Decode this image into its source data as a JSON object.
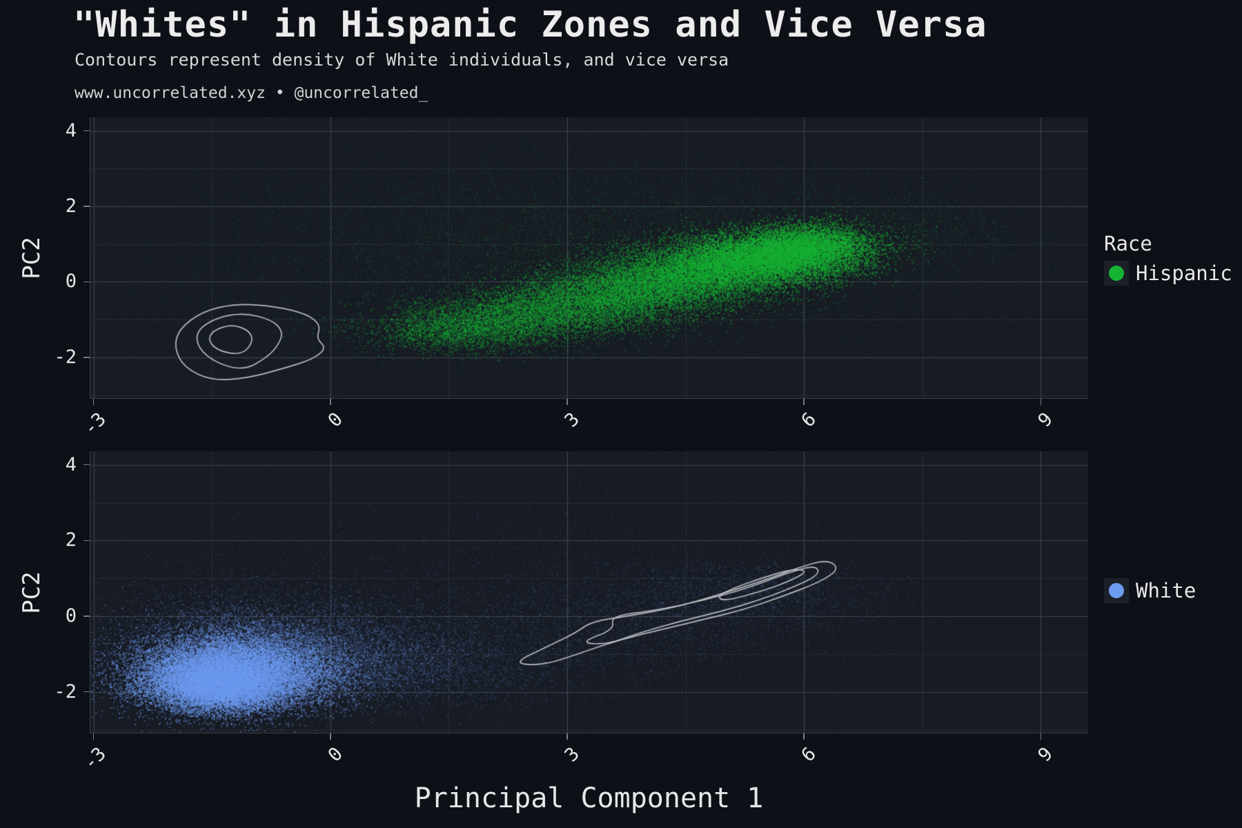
{
  "title": "\"Whites\" in Hispanic Zones and Vice Versa",
  "subtitle": "Contours represent density of White individuals, and vice versa",
  "caption": "www.uncorrelated.xyz • @uncorrelated_",
  "theme": {
    "background": "#0d1016",
    "panel_background": "#171b24",
    "grid_major": "#3e434d",
    "grid_minor": "#262b34",
    "axis_line": "#3a3f48",
    "tick_color": "#767b85",
    "text_color": "#e6e7e9",
    "contour_color": "#c9ccd1",
    "legend_key_background": "#1b2028"
  },
  "legend": {
    "title": "Race",
    "entries": [
      {
        "label": "Hispanic",
        "color": "#17b434"
      },
      {
        "label": "White",
        "color": "#6e9bf2"
      }
    ]
  },
  "axes": {
    "x_title": "Principal Component 1",
    "y_title": "PC2",
    "x_ticks": [
      -3,
      0,
      3,
      6,
      9
    ],
    "y_ticks": [
      -2,
      0,
      2,
      4
    ],
    "x_range": [
      -3.05,
      9.6
    ],
    "y_range": [
      -3.1,
      4.36
    ],
    "grid": true
  },
  "chart_data": [
    {
      "type": "scatter",
      "panel": "top",
      "series": "Hispanic",
      "points_color": "#17b434",
      "description": "Dense green point cloud rising diagonally from (1.5,-1.3) to bright core near (5.5,0.7)-(6.4,1.1); sparse halo across panel. Gray contours show White density centered near (-1.2,-1.6).",
      "clusters": [
        {
          "n": 9000,
          "m": [
            5.45,
            0.62
          ],
          "s": [
            0.6,
            0.34
          ],
          "a": 0.5
        },
        {
          "n": 5000,
          "m": [
            6.1,
            0.95
          ],
          "s": [
            0.42,
            0.3
          ],
          "a": 0.5
        },
        {
          "n": 7000,
          "m": [
            4.55,
            0.18
          ],
          "s": [
            0.65,
            0.36
          ],
          "a": 0.4
        },
        {
          "n": 6000,
          "m": [
            3.6,
            -0.35
          ],
          "s": [
            0.7,
            0.34
          ],
          "a": 0.38
        },
        {
          "n": 4500,
          "m": [
            2.55,
            -0.9
          ],
          "s": [
            0.75,
            0.32
          ],
          "a": 0.35
        },
        {
          "n": 3000,
          "m": [
            1.65,
            -1.28
          ],
          "s": [
            0.6,
            0.3
          ],
          "a": 0.32
        },
        {
          "n": 5000,
          "m": [
            3.9,
            0.5
          ],
          "s": [
            1.9,
            0.95
          ],
          "a": 0.14
        },
        {
          "n": 2400,
          "m": [
            3.0,
            2.0
          ],
          "s": [
            2.6,
            0.9
          ],
          "a": 0.12
        },
        {
          "n": 1000,
          "m": [
            -0.6,
            0.2
          ],
          "s": [
            1.5,
            1.4
          ],
          "a": 0.12
        },
        {
          "n": 900,
          "m": [
            7.2,
            1.35
          ],
          "s": [
            0.9,
            0.6
          ],
          "a": 0.16
        },
        {
          "n": 800,
          "m": [
            4.5,
            1.6
          ],
          "s": [
            3.4,
            1.5
          ],
          "a": 0.1
        }
      ],
      "contours": [
        [
          [
            -1.92,
            -1.25
          ],
          [
            -1.62,
            -0.78
          ],
          [
            -1.2,
            -0.58
          ],
          [
            -0.72,
            -0.64
          ],
          [
            -0.3,
            -0.85
          ],
          [
            -0.12,
            -1.15
          ],
          [
            -0.18,
            -1.5
          ],
          [
            -0.05,
            -1.75
          ],
          [
            -0.22,
            -2.05
          ],
          [
            -0.6,
            -2.3
          ],
          [
            -1.05,
            -2.55
          ],
          [
            -1.5,
            -2.62
          ],
          [
            -1.85,
            -2.28
          ],
          [
            -1.98,
            -1.75
          ]
        ],
        [
          [
            -1.7,
            -1.3
          ],
          [
            -1.45,
            -0.95
          ],
          [
            -1.1,
            -0.82
          ],
          [
            -0.75,
            -1.0
          ],
          [
            -0.6,
            -1.3
          ],
          [
            -0.65,
            -1.65
          ],
          [
            -0.8,
            -2.0
          ],
          [
            -1.1,
            -2.35
          ],
          [
            -1.45,
            -2.15
          ],
          [
            -1.68,
            -1.75
          ]
        ],
        [
          [
            -1.5,
            -1.3
          ],
          [
            -1.25,
            -1.12
          ],
          [
            -1.02,
            -1.3
          ],
          [
            -0.98,
            -1.6
          ],
          [
            -1.12,
            -1.93
          ],
          [
            -1.4,
            -1.85
          ],
          [
            -1.55,
            -1.58
          ]
        ]
      ]
    },
    {
      "type": "scatter",
      "panel": "bottom",
      "series": "White",
      "points_color": "#6e9bf2",
      "description": "Dense blue point cloud centered near (-1.3,-1.5) with halo fading to the right; sparse diagonal spray toward (6,1). Gray contours show Hispanic density along the band from (2.3,-1.2) to (6.4,1.4).",
      "clusters": [
        {
          "n": 15000,
          "m": [
            -1.25,
            -1.5
          ],
          "s": [
            0.6,
            0.48
          ],
          "a": 0.5
        },
        {
          "n": 8000,
          "m": [
            -1.45,
            -1.85
          ],
          "s": [
            0.45,
            0.33
          ],
          "a": 0.5
        },
        {
          "n": 7000,
          "m": [
            -1.0,
            -1.15
          ],
          "s": [
            0.85,
            0.6
          ],
          "a": 0.3
        },
        {
          "n": 4500,
          "m": [
            0.2,
            -1.15
          ],
          "s": [
            1.0,
            0.6
          ],
          "a": 0.16
        },
        {
          "n": 3000,
          "m": [
            -0.85,
            -0.3
          ],
          "s": [
            1.1,
            0.75
          ],
          "a": 0.14
        },
        {
          "n": 2400,
          "m": [
            1.3,
            -1.4
          ],
          "s": [
            1.2,
            0.6
          ],
          "a": 0.12
        },
        {
          "n": 2600,
          "m": [
            3.6,
            -0.2
          ],
          "s": [
            1.3,
            0.75
          ],
          "a": 0.12
        },
        {
          "n": 1700,
          "m": [
            5.3,
            0.6
          ],
          "s": [
            0.95,
            0.5
          ],
          "a": 0.13
        },
        {
          "n": 1300,
          "m": [
            1.6,
            1.0
          ],
          "s": [
            2.6,
            1.1
          ],
          "a": 0.1
        },
        {
          "n": 700,
          "m": [
            2.2,
            2.5
          ],
          "s": [
            2.6,
            0.8
          ],
          "a": 0.1
        }
      ],
      "contours": [
        [
          [
            2.3,
            -1.25
          ],
          [
            2.75,
            -0.8
          ],
          [
            3.1,
            -0.45
          ],
          [
            3.3,
            -0.15
          ],
          [
            3.75,
            0.0
          ],
          [
            4.3,
            0.2
          ],
          [
            4.9,
            0.55
          ],
          [
            5.5,
            0.95
          ],
          [
            5.95,
            1.3
          ],
          [
            6.3,
            1.5
          ],
          [
            6.45,
            1.25
          ],
          [
            6.2,
            0.9
          ],
          [
            5.7,
            0.5
          ],
          [
            5.2,
            0.15
          ],
          [
            4.7,
            -0.1
          ],
          [
            4.2,
            -0.35
          ],
          [
            3.7,
            -0.6
          ],
          [
            3.2,
            -0.95
          ],
          [
            2.7,
            -1.3
          ]
        ],
        [
          [
            3.15,
            -0.7
          ],
          [
            3.6,
            -0.35
          ],
          [
            3.55,
            0.0
          ],
          [
            4.1,
            0.15
          ],
          [
            4.7,
            0.4
          ],
          [
            5.3,
            0.75
          ],
          [
            5.8,
            1.15
          ],
          [
            6.15,
            1.35
          ],
          [
            6.2,
            1.1
          ],
          [
            5.85,
            0.75
          ],
          [
            5.4,
            0.4
          ],
          [
            4.9,
            0.1
          ],
          [
            4.4,
            -0.15
          ],
          [
            3.9,
            -0.45
          ],
          [
            3.5,
            -0.75
          ]
        ],
        [
          [
            5.0,
            0.4
          ],
          [
            5.45,
            0.65
          ],
          [
            5.85,
            0.95
          ],
          [
            6.05,
            1.2
          ],
          [
            5.85,
            1.25
          ],
          [
            5.45,
            1.0
          ],
          [
            5.05,
            0.7
          ],
          [
            4.9,
            0.5
          ]
        ]
      ]
    }
  ]
}
